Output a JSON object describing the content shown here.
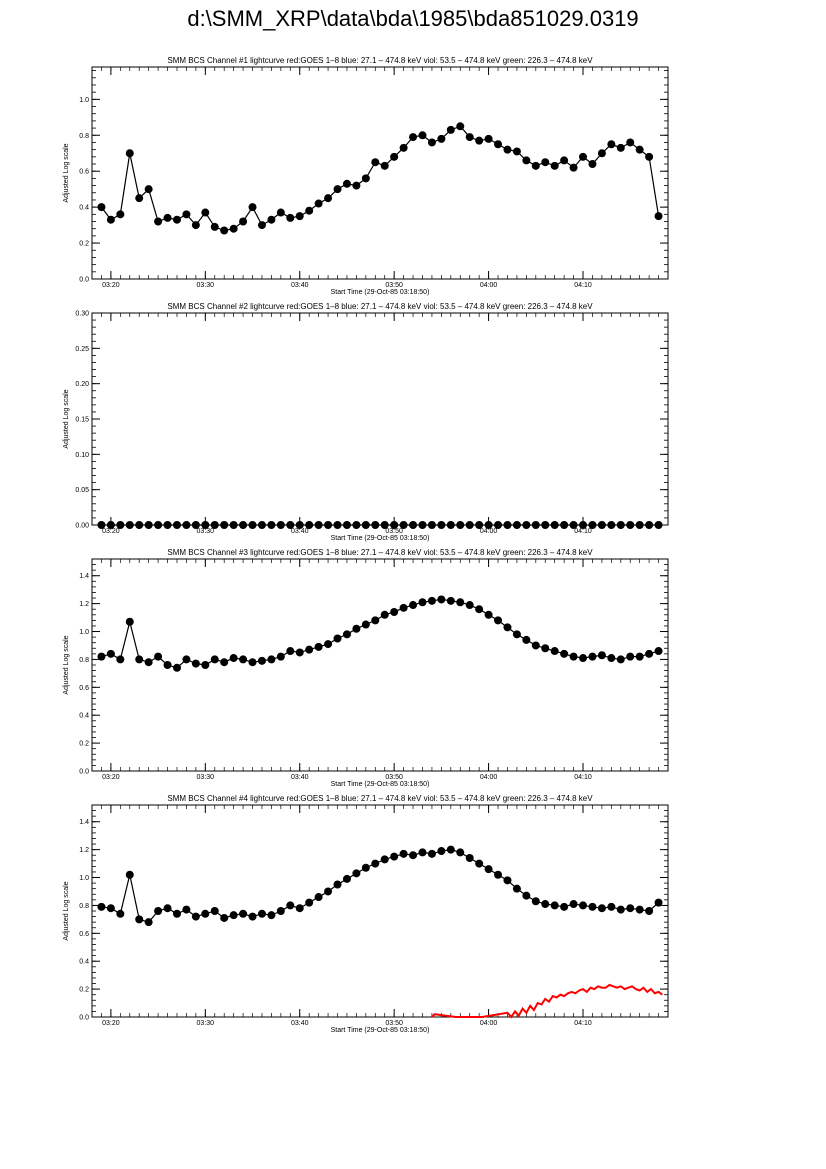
{
  "page_title": "d:\\SMM_XRP\\data\\bda\\1985\\bda851029.0319",
  "colors": {
    "data": "#000000",
    "goes": "#ff0000",
    "axis": "#000000",
    "background": "#ffffff"
  },
  "chart_data": [
    {
      "type": "line",
      "title": "SMM BCS Channel #1 lightcurve  red:GOES 1–8  blue: 27.1 – 474.8 keV  viol: 53.5 – 474.8 keV  green: 226.3 – 474.8 keV",
      "xlabel": "Start Time (29-Oct-85 03:18:50)",
      "ylabel": "Adjusted Log scale",
      "x_ticks": [
        "03:20",
        "03:30",
        "03:40",
        "03:50",
        "04:00",
        "04:10"
      ],
      "y_ticks": [
        "0.0",
        "0.2",
        "0.4",
        "0.6",
        "0.8",
        "1.0"
      ],
      "ylim": [
        0,
        1.18
      ],
      "xlim_minutes": [
        -1,
        60
      ],
      "series": [
        {
          "marker": "circle",
          "x": [
            0,
            1,
            2,
            3,
            4,
            5,
            6,
            7,
            8,
            9,
            10,
            11,
            12,
            13,
            14,
            15,
            16,
            17,
            18,
            19,
            20,
            21,
            22,
            23,
            24,
            25,
            26,
            27,
            28,
            29,
            30,
            31,
            32,
            33,
            34,
            35,
            36,
            37,
            38,
            39,
            40,
            41,
            42,
            43,
            44,
            45,
            46,
            47,
            48,
            49,
            50,
            51,
            52,
            53,
            54,
            55,
            56,
            57,
            58,
            59
          ],
          "y": [
            0.4,
            0.33,
            0.36,
            0.7,
            0.45,
            0.5,
            0.32,
            0.34,
            0.33,
            0.36,
            0.3,
            0.37,
            0.29,
            0.27,
            0.28,
            0.32,
            0.4,
            0.3,
            0.33,
            0.37,
            0.34,
            0.35,
            0.38,
            0.42,
            0.45,
            0.5,
            0.53,
            0.52,
            0.56,
            0.65,
            0.63,
            0.68,
            0.73,
            0.79,
            0.8,
            0.76,
            0.78,
            0.83,
            0.85,
            0.79,
            0.77,
            0.78,
            0.75,
            0.72,
            0.71,
            0.66,
            0.63,
            0.65,
            0.63,
            0.66,
            0.62,
            0.68,
            0.64,
            0.7,
            0.75,
            0.73,
            0.76,
            0.72,
            0.68,
            0.35
          ]
        }
      ]
    },
    {
      "type": "line",
      "title": "SMM BCS Channel #2 lightcurve  red:GOES 1–8  blue: 27.1 – 474.8 keV  viol: 53.5 – 474.8 keV  green: 226.3 – 474.8 keV",
      "xlabel": "Start Time (29-Oct-85 03:18:50)",
      "ylabel": "Adjusted Log scale",
      "x_ticks": [
        "03:20",
        "03:30",
        "03:40",
        "03:50",
        "04:00",
        "04:10"
      ],
      "y_ticks": [
        "0.00",
        "0.05",
        "0.10",
        "0.15",
        "0.20",
        "0.25",
        "0.30"
      ],
      "ylim": [
        0,
        0.3
      ],
      "xlim_minutes": [
        -1,
        60
      ],
      "series": [
        {
          "marker": "circle",
          "x": [
            0,
            1,
            2,
            3,
            4,
            5,
            6,
            7,
            8,
            9,
            10,
            11,
            12,
            13,
            14,
            15,
            16,
            17,
            18,
            19,
            20,
            21,
            22,
            23,
            24,
            25,
            26,
            27,
            28,
            29,
            30,
            31,
            32,
            33,
            34,
            35,
            36,
            37,
            38,
            39,
            40,
            41,
            42,
            43,
            44,
            45,
            46,
            47,
            48,
            49,
            50,
            51,
            52,
            53,
            54,
            55,
            56,
            57,
            58,
            59
          ],
          "y": [
            0,
            0,
            0,
            0,
            0,
            0,
            0,
            0,
            0,
            0,
            0,
            0,
            0,
            0,
            0,
            0,
            0,
            0,
            0,
            0,
            0,
            0,
            0,
            0,
            0,
            0,
            0,
            0,
            0,
            0,
            0,
            0,
            0,
            0,
            0,
            0,
            0,
            0,
            0,
            0,
            0,
            0,
            0,
            0,
            0,
            0,
            0,
            0,
            0,
            0,
            0,
            0,
            0,
            0,
            0,
            0,
            0,
            0,
            0,
            0
          ]
        }
      ]
    },
    {
      "type": "line",
      "title": "SMM BCS Channel #3 lightcurve  red:GOES 1–8  blue: 27.1 – 474.8 keV  viol: 53.5 – 474.8 keV  green: 226.3 – 474.8 keV",
      "xlabel": "Start Time (29-Oct-85 03:18:50)",
      "ylabel": "Adjusted Log scale",
      "x_ticks": [
        "03:20",
        "03:30",
        "03:40",
        "03:50",
        "04:00",
        "04:10"
      ],
      "y_ticks": [
        "0.0",
        "0.2",
        "0.4",
        "0.6",
        "0.8",
        "1.0",
        "1.2",
        "1.4"
      ],
      "ylim": [
        0,
        1.52
      ],
      "xlim_minutes": [
        -1,
        60
      ],
      "series": [
        {
          "marker": "circle",
          "x": [
            0,
            1,
            2,
            3,
            4,
            5,
            6,
            7,
            8,
            9,
            10,
            11,
            12,
            13,
            14,
            15,
            16,
            17,
            18,
            19,
            20,
            21,
            22,
            23,
            24,
            25,
            26,
            27,
            28,
            29,
            30,
            31,
            32,
            33,
            34,
            35,
            36,
            37,
            38,
            39,
            40,
            41,
            42,
            43,
            44,
            45,
            46,
            47,
            48,
            49,
            50,
            51,
            52,
            53,
            54,
            55,
            56,
            57,
            58,
            59
          ],
          "y": [
            0.82,
            0.84,
            0.8,
            1.07,
            0.8,
            0.78,
            0.82,
            0.76,
            0.74,
            0.8,
            0.77,
            0.76,
            0.8,
            0.78,
            0.81,
            0.8,
            0.78,
            0.79,
            0.8,
            0.82,
            0.86,
            0.85,
            0.87,
            0.89,
            0.91,
            0.95,
            0.98,
            1.02,
            1.05,
            1.08,
            1.12,
            1.14,
            1.17,
            1.19,
            1.21,
            1.22,
            1.23,
            1.22,
            1.21,
            1.19,
            1.16,
            1.12,
            1.08,
            1.03,
            0.98,
            0.94,
            0.9,
            0.88,
            0.86,
            0.84,
            0.82,
            0.81,
            0.82,
            0.83,
            0.81,
            0.8,
            0.82,
            0.82,
            0.84,
            0.86
          ]
        }
      ]
    },
    {
      "type": "line",
      "title": "SMM BCS Channel #4 lightcurve  red:GOES 1–8  blue: 27.1 – 474.8 keV  viol: 53.5 – 474.8 keV  green: 226.3 – 474.8 keV",
      "xlabel": "Start Time (29-Oct-85 03:18:50)",
      "ylabel": "Adjusted Log scale",
      "x_ticks": [
        "03:20",
        "03:30",
        "03:40",
        "03:50",
        "04:00",
        "04:10"
      ],
      "y_ticks": [
        "0.0",
        "0.2",
        "0.4",
        "0.6",
        "0.8",
        "1.0",
        "1.2",
        "1.4"
      ],
      "ylim": [
        0,
        1.52
      ],
      "xlim_minutes": [
        -1,
        60
      ],
      "series": [
        {
          "marker": "circle",
          "x": [
            0,
            1,
            2,
            3,
            4,
            5,
            6,
            7,
            8,
            9,
            10,
            11,
            12,
            13,
            14,
            15,
            16,
            17,
            18,
            19,
            20,
            21,
            22,
            23,
            24,
            25,
            26,
            27,
            28,
            29,
            30,
            31,
            32,
            33,
            34,
            35,
            36,
            37,
            38,
            39,
            40,
            41,
            42,
            43,
            44,
            45,
            46,
            47,
            48,
            49,
            50,
            51,
            52,
            53,
            54,
            55,
            56,
            57,
            58,
            59
          ],
          "y": [
            0.79,
            0.78,
            0.74,
            1.02,
            0.7,
            0.68,
            0.76,
            0.78,
            0.74,
            0.77,
            0.72,
            0.74,
            0.76,
            0.71,
            0.73,
            0.74,
            0.72,
            0.74,
            0.73,
            0.76,
            0.8,
            0.78,
            0.82,
            0.86,
            0.9,
            0.95,
            0.99,
            1.03,
            1.07,
            1.1,
            1.13,
            1.15,
            1.17,
            1.16,
            1.18,
            1.17,
            1.19,
            1.2,
            1.18,
            1.14,
            1.1,
            1.06,
            1.02,
            0.98,
            0.92,
            0.87,
            0.83,
            0.81,
            0.8,
            0.79,
            0.81,
            0.8,
            0.79,
            0.78,
            0.79,
            0.77,
            0.78,
            0.77,
            0.76,
            0.82
          ]
        },
        {
          "name": "GOES 1–8",
          "color": "#ff0000",
          "marker": "none",
          "x": [
            35.0,
            35.3,
            37.5,
            40.3,
            43.0,
            43.4,
            43.8,
            44.2,
            44.6,
            45.0,
            45.4,
            45.8,
            46.2,
            46.6,
            47.0,
            47.4,
            47.8,
            48.2,
            48.6,
            49.0,
            49.4,
            49.8,
            50.2,
            50.6,
            51.0,
            51.4,
            51.8,
            52.2,
            52.6,
            53.0,
            53.4,
            53.8,
            54.2,
            54.6,
            55.0,
            55.4,
            55.8,
            56.2,
            56.6,
            57.0,
            57.4,
            57.8,
            58.2,
            58.6,
            59.0,
            59.4
          ],
          "y": [
            0.0,
            0.02,
            0.0,
            0.0,
            0.03,
            0.0,
            0.04,
            0.01,
            0.06,
            0.03,
            0.08,
            0.05,
            0.1,
            0.09,
            0.13,
            0.11,
            0.15,
            0.14,
            0.16,
            0.15,
            0.17,
            0.18,
            0.17,
            0.19,
            0.2,
            0.18,
            0.21,
            0.2,
            0.22,
            0.21,
            0.21,
            0.23,
            0.22,
            0.21,
            0.22,
            0.2,
            0.21,
            0.22,
            0.2,
            0.19,
            0.21,
            0.18,
            0.2,
            0.17,
            0.18,
            0.16
          ]
        }
      ]
    }
  ]
}
